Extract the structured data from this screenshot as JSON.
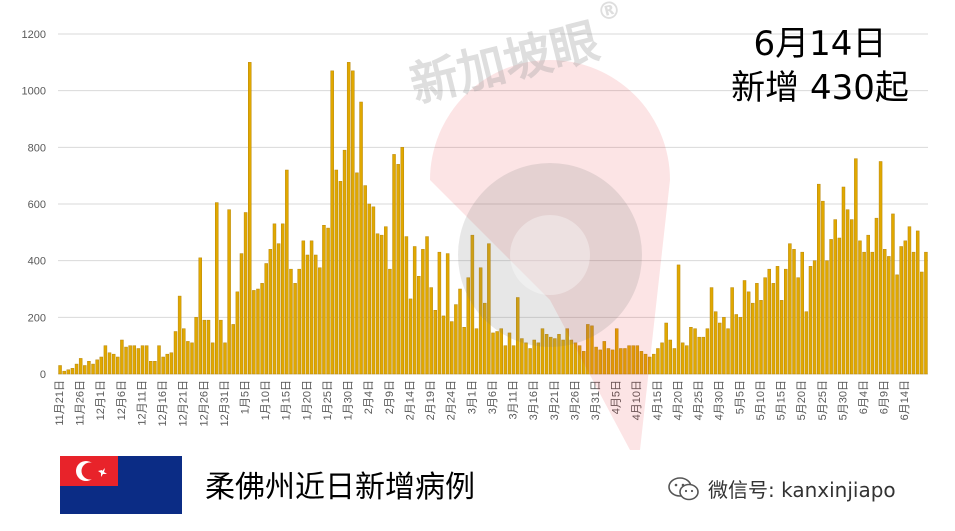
{
  "headline": {
    "date": "6月14日",
    "count_text": "新增 430起"
  },
  "subtitle": "柔佛州近日新增病例",
  "watermark": {
    "text": "新加坡眼",
    "mark": "®"
  },
  "wechat": {
    "label": "微信号: kanxinjiapo"
  },
  "flag": {
    "name": "Johor flag",
    "colors": {
      "upper": "#e8232a",
      "lower": "#0b2c85",
      "emblem": "#ffffff"
    }
  },
  "chart_data": {
    "type": "bar",
    "title": "",
    "xlabel": "",
    "ylabel": "",
    "ylim": [
      0,
      1200
    ],
    "yticks": [
      0,
      200,
      400,
      600,
      800,
      1000,
      1200
    ],
    "grid": true,
    "bar_color": "#e0a800",
    "x_tick_labels": [
      "11月21日",
      "11月26日",
      "12月1日",
      "12月6日",
      "12月11日",
      "12月16日",
      "12月21日",
      "12月26日",
      "12月31日",
      "1月5日",
      "1月10日",
      "1月15日",
      "1月20日",
      "1月25日",
      "1月30日",
      "2月4日",
      "2月9日",
      "2月14日",
      "2月19日",
      "2月24日",
      "3月1日",
      "3月6日",
      "3月11日",
      "3月16日",
      "3月21日",
      "3月26日",
      "3月31日",
      "4月5日",
      "4月10日",
      "4月15日",
      "4月20日",
      "4月25日",
      "4月30日",
      "5月5日",
      "5月10日",
      "5月15日",
      "5月20日",
      "5月25日",
      "5月30日",
      "6月4日",
      "6月9日",
      "6月14日"
    ],
    "tick_every": 5,
    "values": [
      30,
      10,
      15,
      20,
      35,
      55,
      30,
      45,
      35,
      50,
      60,
      100,
      75,
      70,
      60,
      120,
      95,
      100,
      100,
      90,
      100,
      100,
      45,
      45,
      100,
      60,
      70,
      75,
      150,
      275,
      160,
      115,
      110,
      200,
      410,
      190,
      190,
      110,
      605,
      190,
      110,
      580,
      175,
      290,
      425,
      570,
      1100,
      295,
      300,
      320,
      390,
      440,
      530,
      460,
      530,
      720,
      370,
      320,
      370,
      470,
      420,
      470,
      420,
      375,
      525,
      515,
      1070,
      720,
      680,
      790,
      1100,
      1070,
      710,
      960,
      665,
      600,
      590,
      495,
      490,
      520,
      370,
      775,
      740,
      800,
      485,
      265,
      450,
      345,
      440,
      485,
      305,
      225,
      430,
      205,
      425,
      185,
      245,
      300,
      165,
      340,
      490,
      160,
      375,
      250,
      460,
      145,
      150,
      160,
      100,
      145,
      100,
      270,
      125,
      110,
      90,
      120,
      110,
      160,
      140,
      130,
      125,
      140,
      120,
      160,
      120,
      110,
      100,
      80,
      175,
      170,
      95,
      85,
      115,
      90,
      85,
      160,
      90,
      90,
      100,
      100,
      100,
      80,
      70,
      60,
      70,
      90,
      110,
      180,
      120,
      90,
      385,
      110,
      100,
      165,
      160,
      130,
      130,
      160,
      305,
      220,
      180,
      200,
      160,
      305,
      210,
      200,
      330,
      290,
      250,
      320,
      260,
      340,
      370,
      320,
      380,
      260,
      370,
      460,
      440,
      340,
      430,
      220,
      380,
      400,
      670,
      610,
      400,
      475,
      545,
      480,
      660,
      580,
      545,
      760,
      470,
      430,
      490,
      430,
      550,
      750,
      440,
      415,
      565,
      350,
      450,
      470,
      520,
      430,
      505,
      360,
      430
    ]
  }
}
